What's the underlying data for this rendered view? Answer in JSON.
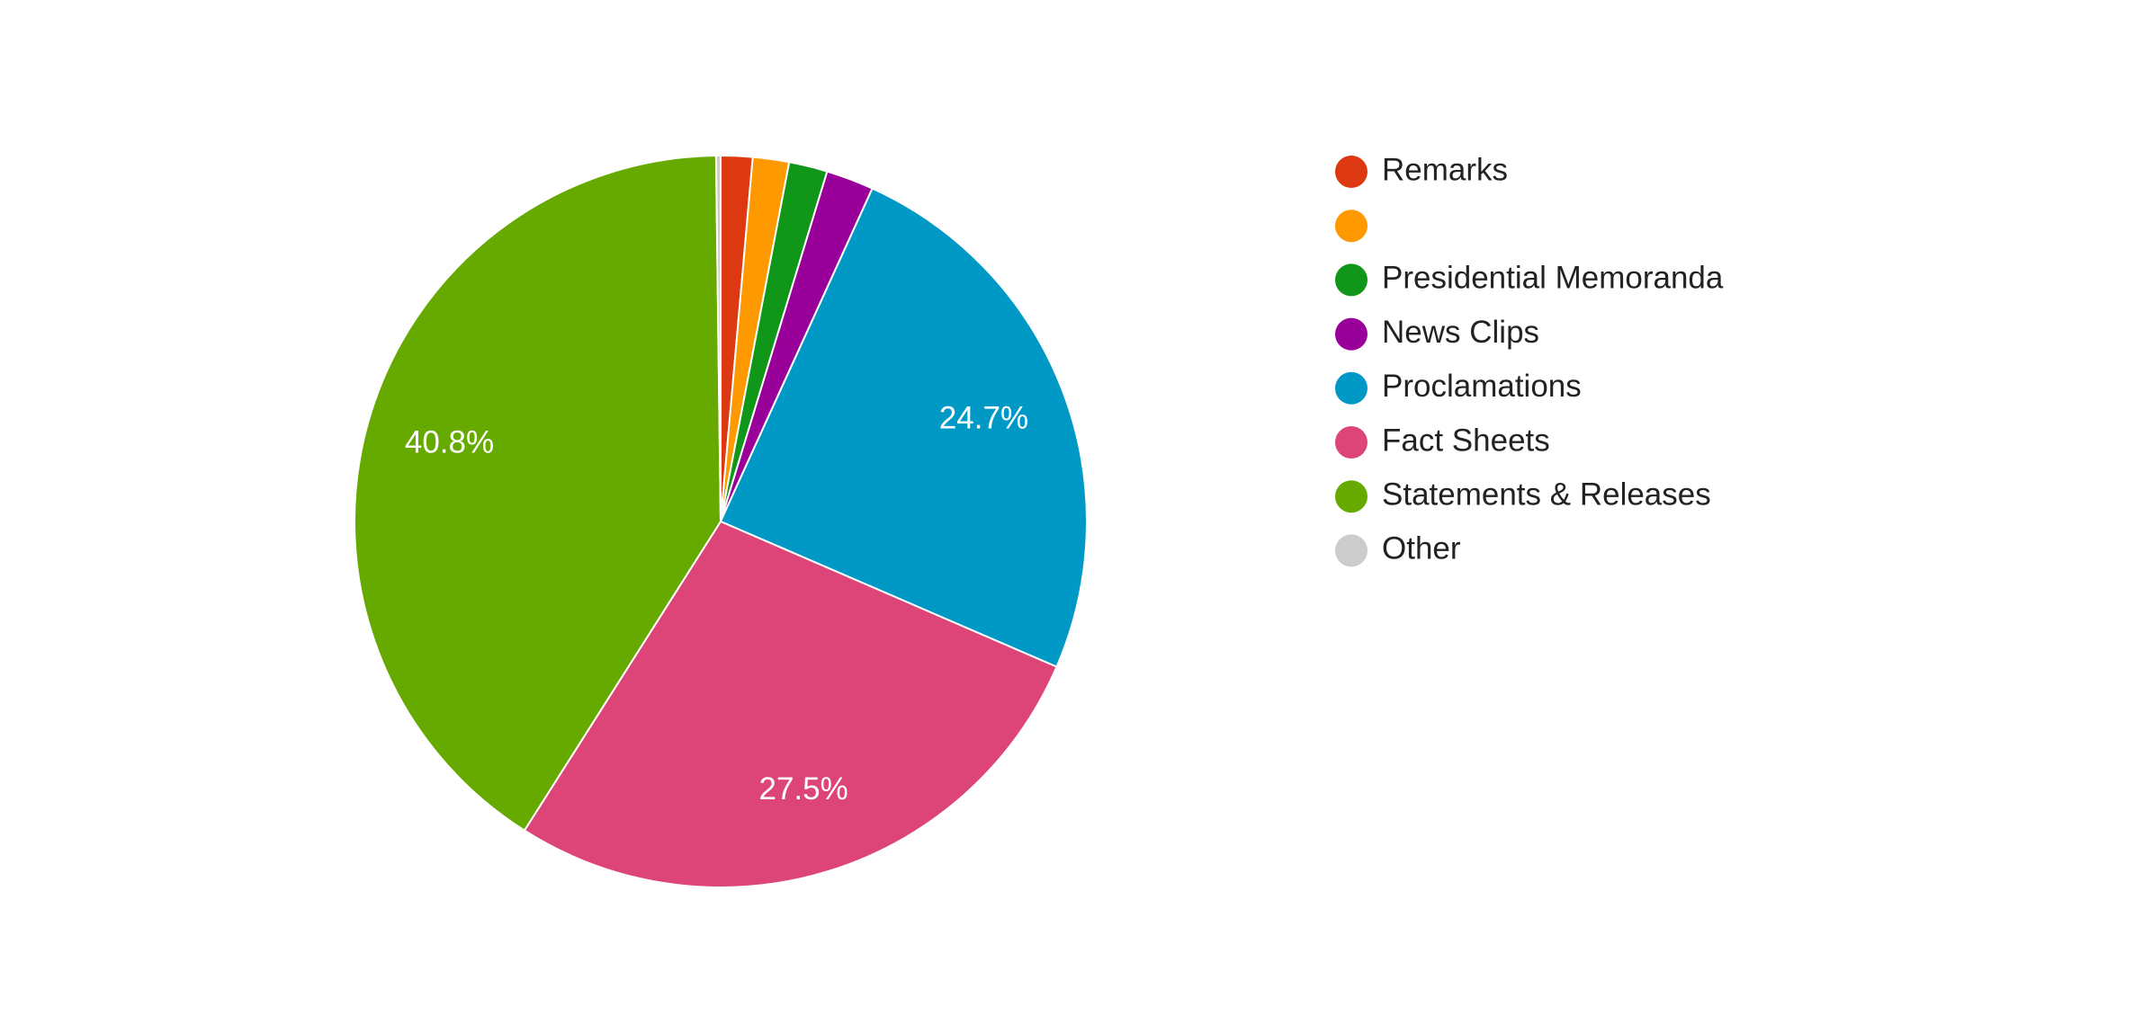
{
  "chart_data": {
    "type": "pie",
    "categories": [
      "Remarks",
      null,
      "Presidential Memoranda",
      "News Clips",
      "Proclamations",
      "Fact Sheets",
      "Statements & Releases",
      "Other"
    ],
    "values": [
      1.4,
      1.6,
      1.7,
      2.1,
      24.7,
      27.5,
      40.8,
      0.2
    ],
    "value_labels": [
      null,
      null,
      null,
      null,
      "24.7%",
      "27.5%",
      "40.8%",
      null
    ],
    "colors": [
      "#dc3912",
      "#ff9900",
      "#109618",
      "#990099",
      "#0099c6",
      "#dd4477",
      "#66aa00",
      "#cccccc"
    ],
    "legend": "right"
  }
}
